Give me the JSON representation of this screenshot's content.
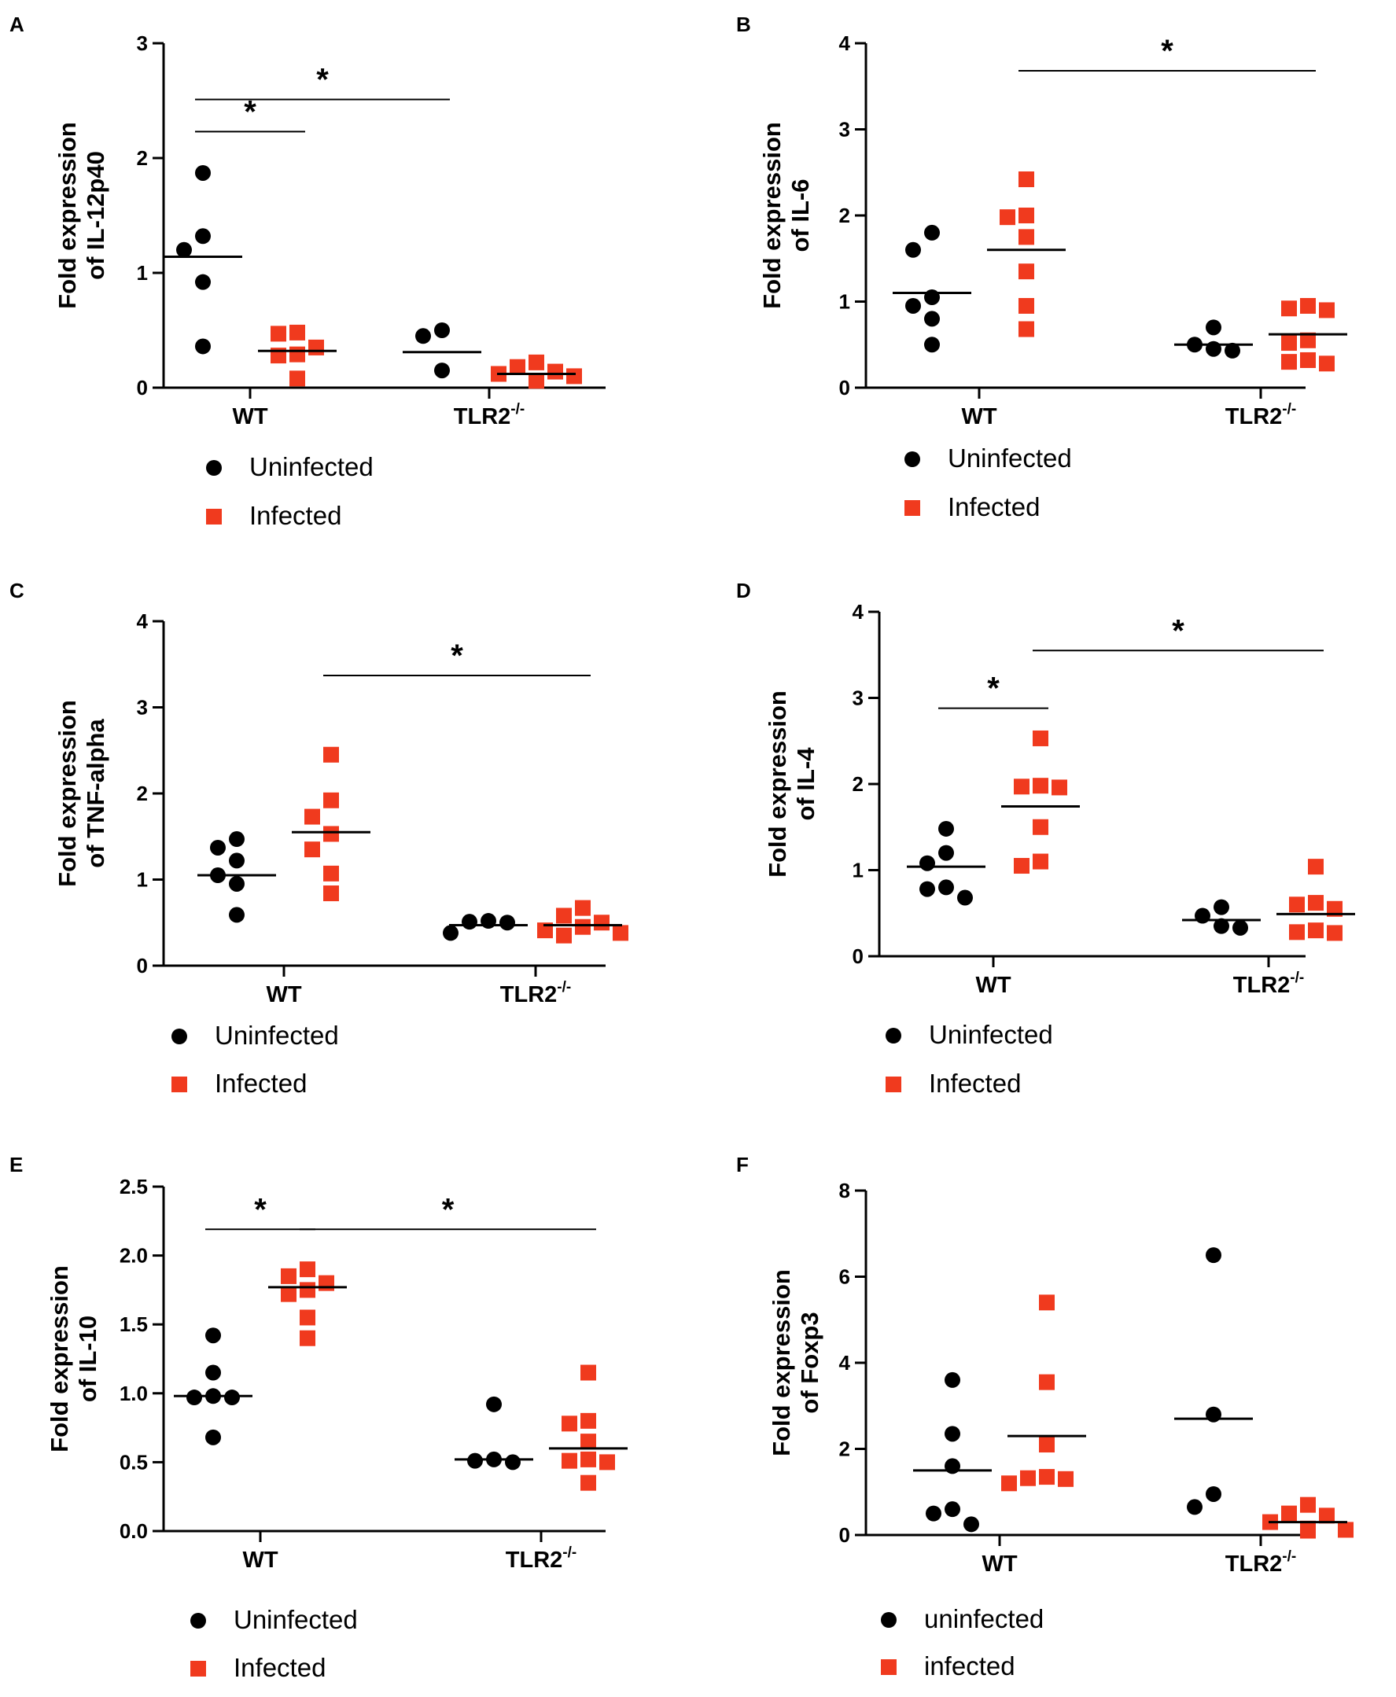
{
  "colors": {
    "uninfected": "#000000",
    "infected": "#f03a1e",
    "axis": "#000000"
  },
  "chart_data": [
    {
      "id": "A",
      "type": "scatter",
      "panel_label": "A",
      "ylabel": [
        "Fold expression",
        "of IL-12p40"
      ],
      "ylim": [
        0,
        3
      ],
      "yticks": [
        "0",
        "1",
        "2",
        "3"
      ],
      "ytick_values": [
        0,
        1,
        2,
        3
      ],
      "categories": [
        {
          "name": "WT",
          "sup": ""
        },
        {
          "name": "TLR2",
          "sup": "-/-"
        }
      ],
      "series": [
        {
          "name": "Uninfected",
          "marker": "circle",
          "points": [
            [
              0,
              1.87
            ],
            [
              0,
              1.32
            ],
            [
              0,
              1.2
            ],
            [
              0,
              0.92
            ],
            [
              0,
              0.36
            ],
            [
              1,
              0.5
            ],
            [
              1,
              0.45
            ],
            [
              1,
              0.15
            ]
          ],
          "means": [
            1.14,
            0.31
          ]
        },
        {
          "name": "Infected",
          "marker": "square",
          "points": [
            [
              0,
              0.48
            ],
            [
              0,
              0.47
            ],
            [
              0,
              0.35
            ],
            [
              0,
              0.29
            ],
            [
              0,
              0.28
            ],
            [
              0,
              0.08
            ],
            [
              1,
              0.22
            ],
            [
              1,
              0.18
            ],
            [
              1,
              0.14
            ],
            [
              1,
              0.12
            ],
            [
              1,
              0.1
            ],
            [
              1,
              0.06
            ]
          ],
          "means": [
            0.32,
            0.12
          ]
        }
      ],
      "sig": [
        {
          "from": [
            0,
            0
          ],
          "to": [
            0,
            1
          ],
          "y": 2.23,
          "label": "*"
        },
        {
          "from": [
            0,
            0
          ],
          "to": [
            1,
            0
          ],
          "y": 2.51,
          "label": "*"
        }
      ],
      "legend": [
        "Uninfected",
        "Infected"
      ]
    },
    {
      "id": "B",
      "type": "scatter",
      "panel_label": "B",
      "ylabel": [
        "Fold expression",
        "of IL-6"
      ],
      "ylim": [
        0,
        4
      ],
      "yticks": [
        "0",
        "1",
        "2",
        "3",
        "4"
      ],
      "ytick_values": [
        0,
        1,
        2,
        3,
        4
      ],
      "categories": [
        {
          "name": "WT",
          "sup": ""
        },
        {
          "name": "TLR2",
          "sup": "-/-"
        }
      ],
      "series": [
        {
          "name": "Uninfected",
          "marker": "circle",
          "points": [
            [
              0,
              1.8
            ],
            [
              0,
              1.6
            ],
            [
              0,
              1.05
            ],
            [
              0,
              0.95
            ],
            [
              0,
              0.8
            ],
            [
              0,
              0.5
            ],
            [
              1,
              0.7
            ],
            [
              1,
              0.5
            ],
            [
              1,
              0.45
            ],
            [
              1,
              0.43
            ]
          ],
          "means": [
            1.1,
            0.5
          ]
        },
        {
          "name": "Infected",
          "marker": "square",
          "points": [
            [
              0,
              2.42
            ],
            [
              0,
              2.0
            ],
            [
              0,
              1.98
            ],
            [
              0,
              1.75
            ],
            [
              0,
              1.35
            ],
            [
              0,
              0.95
            ],
            [
              0,
              0.68
            ],
            [
              1,
              0.95
            ],
            [
              1,
              0.92
            ],
            [
              1,
              0.9
            ],
            [
              1,
              0.55
            ],
            [
              1,
              0.52
            ],
            [
              1,
              0.32
            ],
            [
              1,
              0.3
            ],
            [
              1,
              0.28
            ]
          ],
          "means": [
            1.6,
            0.62
          ]
        }
      ],
      "sig": [
        {
          "from": [
            0,
            1
          ],
          "to": [
            1,
            1
          ],
          "y": 3.68,
          "label": "*"
        }
      ],
      "legend": [
        "Uninfected",
        "Infected"
      ]
    },
    {
      "id": "C",
      "type": "scatter",
      "panel_label": "C",
      "ylabel": [
        "Fold expression",
        "of TNF-alpha"
      ],
      "ylim": [
        0,
        4
      ],
      "yticks": [
        "0",
        "1",
        "2",
        "3",
        "4"
      ],
      "ytick_values": [
        0,
        1,
        2,
        3,
        4
      ],
      "categories": [
        {
          "name": "WT",
          "sup": ""
        },
        {
          "name": "TLR2",
          "sup": "-/-"
        }
      ],
      "series": [
        {
          "name": "Uninfected",
          "marker": "circle",
          "points": [
            [
              0,
              1.47
            ],
            [
              0,
              1.37
            ],
            [
              0,
              1.22
            ],
            [
              0,
              1.05
            ],
            [
              0,
              0.95
            ],
            [
              0,
              0.59
            ],
            [
              1,
              0.52
            ],
            [
              1,
              0.51
            ],
            [
              1,
              0.5
            ],
            [
              1,
              0.38
            ]
          ],
          "means": [
            1.05,
            0.47
          ]
        },
        {
          "name": "Infected",
          "marker": "square",
          "points": [
            [
              0,
              2.45
            ],
            [
              0,
              1.92
            ],
            [
              0,
              1.73
            ],
            [
              0,
              1.53
            ],
            [
              0,
              1.35
            ],
            [
              0,
              1.07
            ],
            [
              0,
              0.84
            ],
            [
              1,
              0.67
            ],
            [
              1,
              0.58
            ],
            [
              1,
              0.5
            ],
            [
              1,
              0.45
            ],
            [
              1,
              0.41
            ],
            [
              1,
              0.38
            ],
            [
              1,
              0.35
            ]
          ],
          "means": [
            1.55,
            0.47
          ]
        }
      ],
      "sig": [
        {
          "from": [
            0,
            1
          ],
          "to": [
            1,
            1
          ],
          "y": 3.37,
          "label": "*"
        }
      ],
      "legend": [
        "Uninfected",
        "Infected"
      ]
    },
    {
      "id": "D",
      "type": "scatter",
      "panel_label": "D",
      "ylabel": [
        "Fold expression",
        "of IL-4"
      ],
      "ylim": [
        0,
        4
      ],
      "yticks": [
        "0",
        "1",
        "2",
        "3",
        "4"
      ],
      "ytick_values": [
        0,
        1,
        2,
        3,
        4
      ],
      "categories": [
        {
          "name": "WT",
          "sup": ""
        },
        {
          "name": "TLR2",
          "sup": "-/-"
        }
      ],
      "series": [
        {
          "name": "Uninfected",
          "marker": "circle",
          "points": [
            [
              0,
              1.48
            ],
            [
              0,
              1.2
            ],
            [
              0,
              1.08
            ],
            [
              0,
              0.8
            ],
            [
              0,
              0.78
            ],
            [
              0,
              0.68
            ],
            [
              1,
              0.57
            ],
            [
              1,
              0.47
            ],
            [
              1,
              0.35
            ],
            [
              1,
              0.33
            ]
          ],
          "means": [
            1.04,
            0.42
          ]
        },
        {
          "name": "Infected",
          "marker": "square",
          "points": [
            [
              0,
              2.53
            ],
            [
              0,
              1.98
            ],
            [
              0,
              1.97
            ],
            [
              0,
              1.96
            ],
            [
              0,
              1.5
            ],
            [
              0,
              1.1
            ],
            [
              0,
              1.05
            ],
            [
              1,
              1.04
            ],
            [
              1,
              0.62
            ],
            [
              1,
              0.6
            ],
            [
              1,
              0.55
            ],
            [
              1,
              0.3
            ],
            [
              1,
              0.28
            ],
            [
              1,
              0.27
            ]
          ],
          "means": [
            1.74,
            0.49
          ]
        }
      ],
      "sig": [
        {
          "from": [
            0,
            0
          ],
          "to": [
            0,
            1
          ],
          "y": 2.88,
          "label": "*"
        },
        {
          "from": [
            0,
            1
          ],
          "to": [
            1,
            1
          ],
          "y": 3.55,
          "label": "*"
        }
      ],
      "legend": [
        "Uninfected",
        "Infected"
      ]
    },
    {
      "id": "E",
      "type": "scatter",
      "panel_label": "E",
      "ylabel": [
        "Fold expression",
        "of IL-10"
      ],
      "ylim": [
        0,
        2.5
      ],
      "yticks": [
        "0.0",
        "0.5",
        "1.0",
        "1.5",
        "2.0",
        "2.5"
      ],
      "ytick_values": [
        0,
        0.5,
        1,
        1.5,
        2,
        2.5
      ],
      "categories": [
        {
          "name": "WT",
          "sup": ""
        },
        {
          "name": "TLR2",
          "sup": "-/-"
        }
      ],
      "series": [
        {
          "name": "Uninfected",
          "marker": "circle",
          "points": [
            [
              0,
              1.42
            ],
            [
              0,
              1.15
            ],
            [
              0,
              0.98
            ],
            [
              0,
              0.97
            ],
            [
              0,
              0.97
            ],
            [
              0,
              0.68
            ],
            [
              1,
              0.92
            ],
            [
              1,
              0.52
            ],
            [
              1,
              0.51
            ],
            [
              1,
              0.5
            ]
          ],
          "means": [
            0.98,
            0.52
          ]
        },
        {
          "name": "Infected",
          "marker": "square",
          "points": [
            [
              0,
              1.9
            ],
            [
              0,
              1.85
            ],
            [
              0,
              1.8
            ],
            [
              0,
              1.75
            ],
            [
              0,
              1.72
            ],
            [
              0,
              1.55
            ],
            [
              0,
              1.4
            ],
            [
              1,
              1.15
            ],
            [
              1,
              0.8
            ],
            [
              1,
              0.78
            ],
            [
              1,
              0.65
            ],
            [
              1,
              0.52
            ],
            [
              1,
              0.51
            ],
            [
              1,
              0.5
            ],
            [
              1,
              0.35
            ]
          ],
          "means": [
            1.77,
            0.6
          ]
        }
      ],
      "sig": [
        {
          "from": [
            0,
            0
          ],
          "to": [
            0,
            1
          ],
          "y": 2.19,
          "label": "*"
        },
        {
          "from": [
            0,
            1
          ],
          "to": [
            1,
            1
          ],
          "y": 2.19,
          "label": "*"
        }
      ],
      "legend": [
        "Uninfected",
        "Infected"
      ]
    },
    {
      "id": "F",
      "type": "scatter",
      "panel_label": "F",
      "ylabel": [
        "Fold expression",
        "of Foxp3"
      ],
      "ylim": [
        0,
        8
      ],
      "yticks": [
        "0",
        "2",
        "4",
        "6",
        "8"
      ],
      "ytick_values": [
        0,
        2,
        4,
        6,
        8
      ],
      "categories": [
        {
          "name": "WT",
          "sup": ""
        },
        {
          "name": "TLR2",
          "sup": "-/-"
        }
      ],
      "series": [
        {
          "name": "uninfected",
          "marker": "circle",
          "points": [
            [
              0,
              3.6
            ],
            [
              0,
              2.35
            ],
            [
              0,
              1.6
            ],
            [
              0,
              0.6
            ],
            [
              0,
              0.5
            ],
            [
              0,
              0.25
            ],
            [
              1,
              6.5
            ],
            [
              1,
              2.8
            ],
            [
              1,
              0.95
            ],
            [
              1,
              0.65
            ]
          ],
          "means": [
            1.5,
            2.7
          ]
        },
        {
          "name": "infected",
          "marker": "square",
          "points": [
            [
              0,
              5.4
            ],
            [
              0,
              3.55
            ],
            [
              0,
              2.1
            ],
            [
              0,
              1.35
            ],
            [
              0,
              1.32
            ],
            [
              0,
              1.3
            ],
            [
              0,
              1.2
            ],
            [
              1,
              0.7
            ],
            [
              1,
              0.5
            ],
            [
              1,
              0.45
            ],
            [
              1,
              0.3
            ],
            [
              1,
              0.15
            ],
            [
              1,
              0.12
            ],
            [
              1,
              0.1
            ]
          ],
          "means": [
            2.3,
            0.3
          ]
        }
      ],
      "sig": [],
      "legend": [
        "uninfected",
        "infected"
      ]
    }
  ]
}
